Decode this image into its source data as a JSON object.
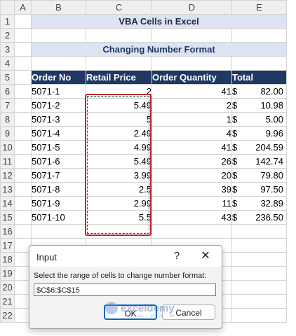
{
  "columns": [
    "A",
    "B",
    "C",
    "D",
    "E"
  ],
  "rows": [
    "1",
    "2",
    "3",
    "4",
    "5",
    "6",
    "7",
    "8",
    "9",
    "10",
    "11",
    "12",
    "13",
    "14",
    "15",
    "16",
    "17",
    "18",
    "19",
    "20",
    "21",
    "22"
  ],
  "title": "VBA Cells in Excel",
  "subtitle": "Changing Number Format",
  "table": {
    "headers": [
      "Order No",
      "Retail Price",
      "Order Quantity",
      "Total"
    ],
    "rows": [
      {
        "order": "5071-1",
        "price": "2",
        "qty": "41",
        "cur": "$",
        "total": "82.00"
      },
      {
        "order": "5071-2",
        "price": "5.49",
        "qty": "2",
        "cur": "$",
        "total": "10.98"
      },
      {
        "order": "5071-3",
        "price": "5",
        "qty": "1",
        "cur": "$",
        "total": "5.00"
      },
      {
        "order": "5071-4",
        "price": "2.49",
        "qty": "4",
        "cur": "$",
        "total": "9.96"
      },
      {
        "order": "5071-5",
        "price": "4.99",
        "qty": "41",
        "cur": "$",
        "total": "204.59"
      },
      {
        "order": "5071-6",
        "price": "5.49",
        "qty": "26",
        "cur": "$",
        "total": "142.74"
      },
      {
        "order": "5071-7",
        "price": "3.99",
        "qty": "20",
        "cur": "$",
        "total": "79.80"
      },
      {
        "order": "5071-8",
        "price": "2.5",
        "qty": "39",
        "cur": "$",
        "total": "97.50"
      },
      {
        "order": "5071-9",
        "price": "2.99",
        "qty": "11",
        "cur": "$",
        "total": "32.89"
      },
      {
        "order": "5071-10",
        "price": "5.5",
        "qty": "43",
        "cur": "$",
        "total": "236.50"
      }
    ]
  },
  "dialog": {
    "title": "Input",
    "help": "?",
    "close": "✕",
    "prompt": "Select the range of cells to change number format:",
    "value": "$C$6:$C$15",
    "ok": "OK",
    "cancel": "Cancel"
  },
  "watermark": {
    "name": "exceldemy",
    "tagline": "EXCEL · DATA · BI"
  },
  "colors": {
    "header_bg": "#1f3864",
    "title_bg": "#dde3f2",
    "selection": "#c0282d"
  }
}
